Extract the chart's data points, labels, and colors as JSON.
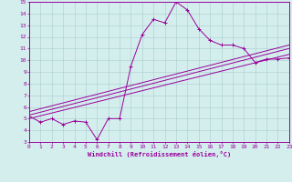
{
  "xlabel": "Windchill (Refroidissement éolien,°C)",
  "xlim": [
    0,
    23
  ],
  "ylim": [
    3,
    15
  ],
  "xticks": [
    0,
    1,
    2,
    3,
    4,
    5,
    6,
    7,
    8,
    9,
    10,
    11,
    12,
    13,
    14,
    15,
    16,
    17,
    18,
    19,
    20,
    21,
    22,
    23
  ],
  "yticks": [
    3,
    4,
    5,
    6,
    7,
    8,
    9,
    10,
    11,
    12,
    13,
    14,
    15
  ],
  "bg_color": "#d4eeee",
  "grid_color": "#aacccc",
  "line_color": "#990099",
  "line1_x": [
    0,
    1,
    2,
    3,
    4,
    5,
    6,
    7,
    8,
    9,
    10,
    11,
    12,
    13,
    14,
    15,
    16,
    17,
    18,
    19,
    20,
    21,
    22,
    23
  ],
  "line1_y": [
    5.2,
    4.7,
    5.0,
    4.5,
    4.8,
    4.7,
    3.2,
    5.0,
    5.0,
    9.5,
    12.2,
    13.5,
    13.2,
    15.0,
    14.3,
    12.7,
    11.7,
    11.3,
    11.3,
    11.0,
    9.8,
    10.1,
    10.1,
    10.2
  ],
  "line2_x": [
    0,
    23
  ],
  "line2_y": [
    5.0,
    10.5
  ],
  "line3_x": [
    0,
    23
  ],
  "line3_y": [
    5.3,
    11.0
  ],
  "line4_x": [
    0,
    23
  ],
  "line4_y": [
    5.6,
    11.3
  ]
}
